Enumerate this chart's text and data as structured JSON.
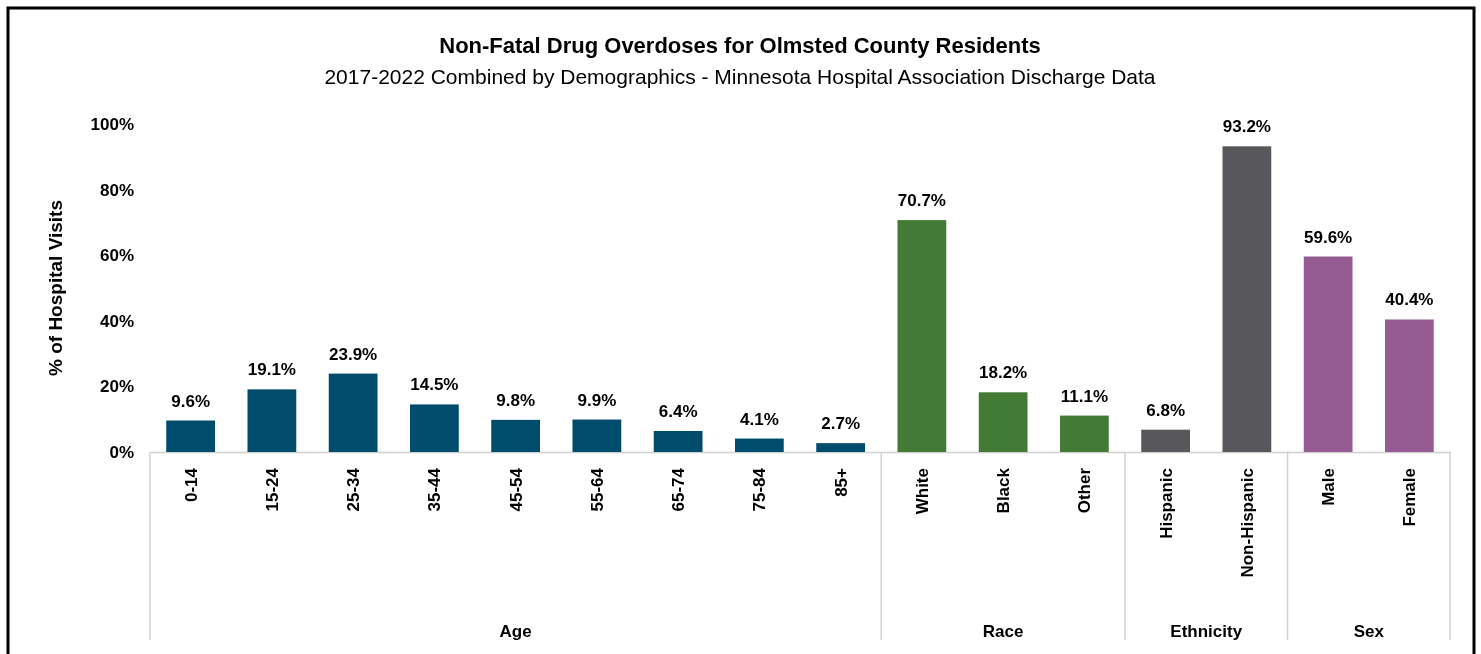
{
  "chart_data": {
    "type": "bar",
    "title": "Non-Fatal Drug Overdoses for Olmsted County Residents",
    "subtitle": "2017-2022 Combined by Demographics - Minnesota Hospital Association Discharge Data",
    "ylabel": "% of Hospital Visits",
    "categories": [
      "0-14",
      "15-24",
      "25-34",
      "35-44",
      "45-54",
      "55-64",
      "65-74",
      "75-84",
      "85+",
      "White",
      "Black",
      "Other",
      "Hispanic",
      "Non-Hispanic",
      "Male",
      "Female"
    ],
    "series": [
      {
        "color": "#004c6d",
        "values": [
          9.6,
          19.1,
          23.9,
          14.5,
          9.8,
          9.9,
          6.4,
          4.1,
          2.7,
          null,
          null,
          null,
          null,
          null,
          null,
          null
        ],
        "value_labels": [
          "9.6%",
          "19.1%",
          "23.9%",
          "14.5%",
          "9.8%",
          "9.9%",
          "6.4%",
          "4.1%",
          "2.7%",
          null,
          null,
          null,
          null,
          null,
          null,
          null
        ]
      },
      {
        "color": "#437a35",
        "values": [
          null,
          null,
          null,
          null,
          null,
          null,
          null,
          null,
          null,
          70.7,
          18.2,
          11.1,
          null,
          null,
          null,
          null
        ],
        "value_labels": [
          null,
          null,
          null,
          null,
          null,
          null,
          null,
          null,
          null,
          "70.7%",
          "18.2%",
          "11.1%",
          null,
          null,
          null,
          null
        ]
      },
      {
        "color": "#58585c",
        "values": [
          null,
          null,
          null,
          null,
          null,
          null,
          null,
          null,
          null,
          null,
          null,
          null,
          6.8,
          93.2,
          null,
          null
        ],
        "value_labels": [
          null,
          null,
          null,
          null,
          null,
          null,
          null,
          null,
          null,
          null,
          null,
          null,
          "6.8%",
          "93.2%",
          null,
          null
        ]
      },
      {
        "color": "#955b92",
        "values": [
          null,
          null,
          null,
          null,
          null,
          null,
          null,
          null,
          null,
          null,
          null,
          null,
          null,
          null,
          59.6,
          40.4
        ],
        "value_labels": [
          null,
          null,
          null,
          null,
          null,
          null,
          null,
          null,
          null,
          null,
          null,
          null,
          null,
          null,
          "59.6%",
          "40.4%"
        ]
      }
    ],
    "ylim": [
      0,
      100
    ],
    "yticks": [
      {
        "value": 0,
        "label": "0%"
      },
      {
        "value": 20,
        "label": "20%"
      },
      {
        "value": 40,
        "label": "40%"
      },
      {
        "value": 60,
        "label": "60%"
      },
      {
        "value": 80,
        "label": "80%"
      },
      {
        "value": 100,
        "label": "100%"
      }
    ],
    "annotations": [
      "Age",
      "Race",
      "Ethnicity",
      "Sex"
    ],
    "grid": false,
    "legend": false
  }
}
